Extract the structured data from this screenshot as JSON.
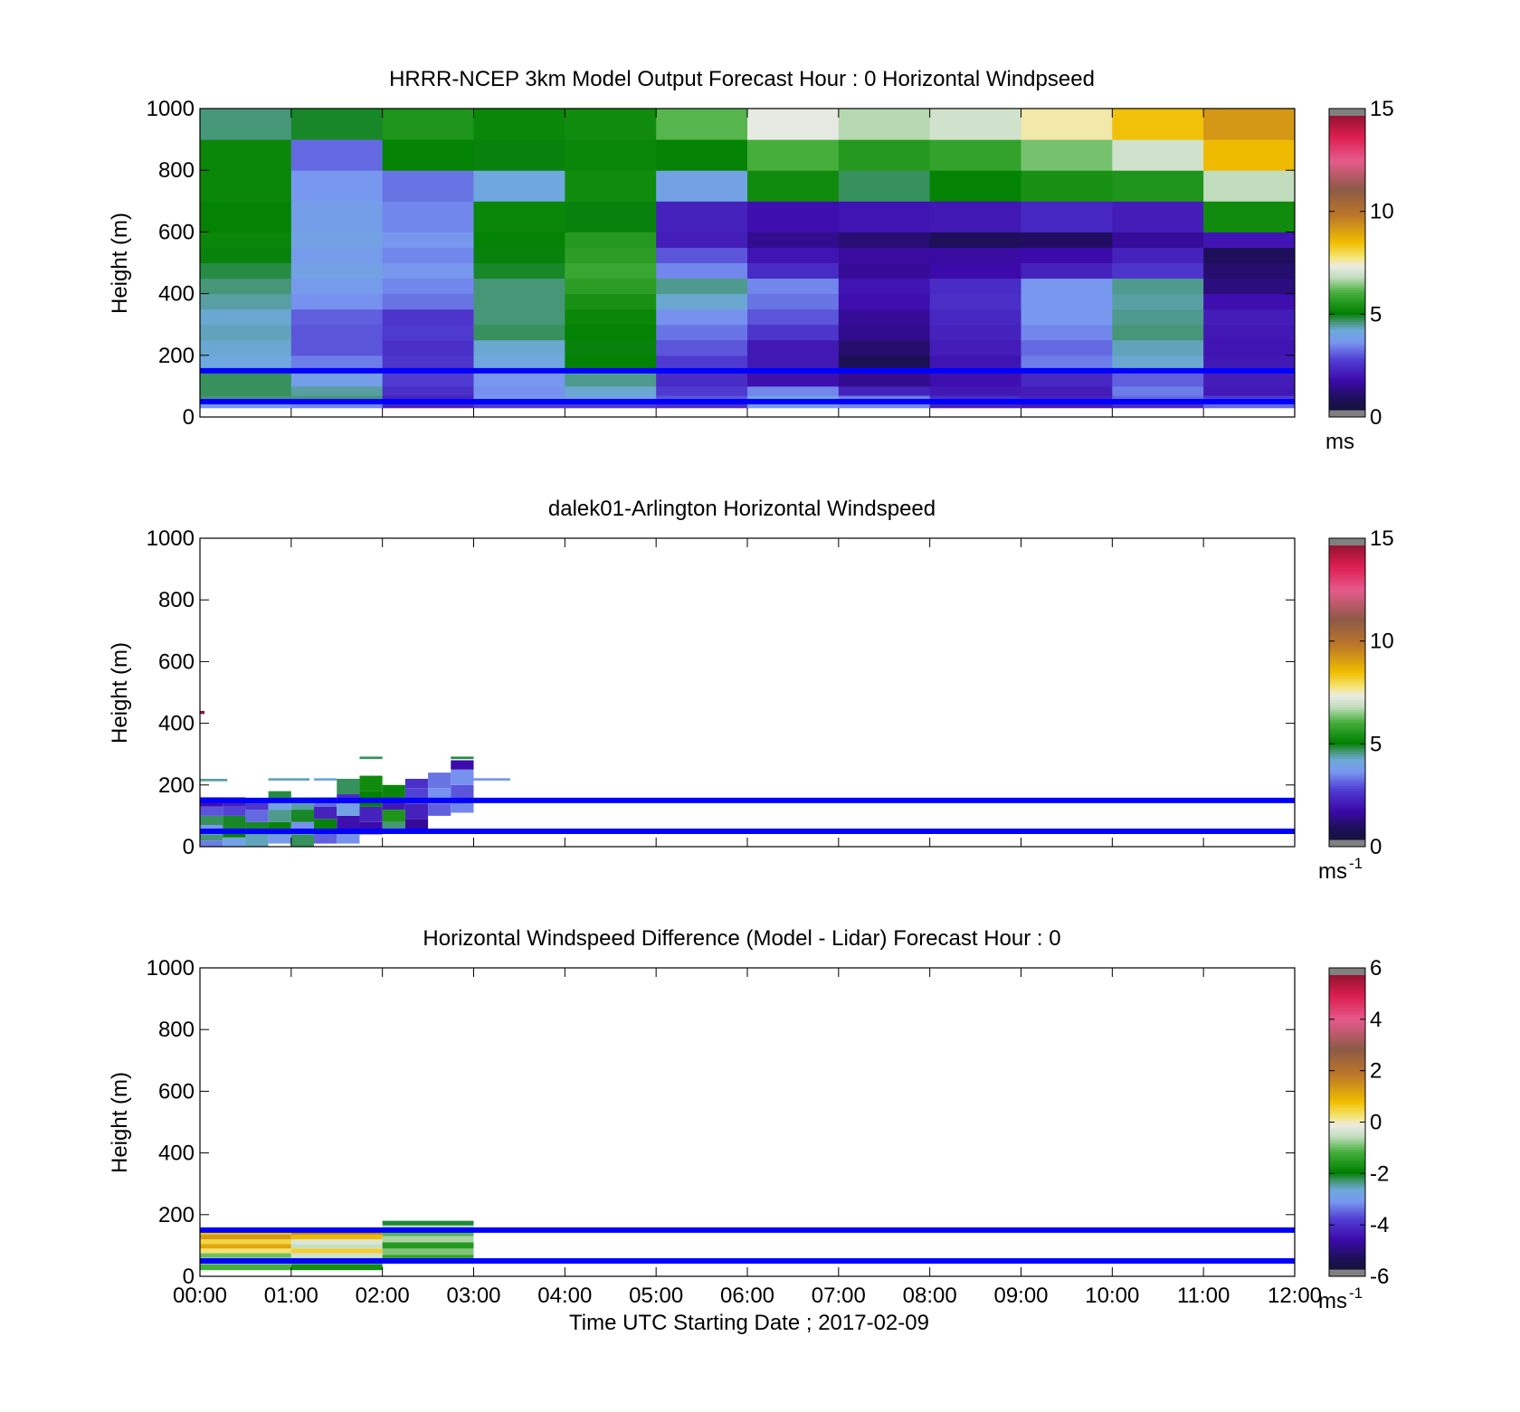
{
  "colors": {
    "reference_line": "#0000ff",
    "axes": "#000000",
    "background": "#ffffff"
  },
  "time_ticks": [
    "00:00",
    "01:00",
    "02:00",
    "03:00",
    "04:00",
    "05:00",
    "06:00",
    "07:00",
    "08:00",
    "09:00",
    "10:00",
    "11:00",
    "12:00"
  ],
  "xlabel": "Time UTC  Starting Date ; 2017-02-09",
  "chart_data": [
    {
      "type": "heatmap",
      "title": "HRRR-NCEP 3km Model Output   Forecast Hour : 0 Horizontal Windpseed",
      "ylabel": "Height (m)",
      "ylim": [
        0,
        1000
      ],
      "yticks": [
        "0",
        "200",
        "400",
        "600",
        "800",
        "1000"
      ],
      "xlim_hours": [
        0,
        12
      ],
      "colorbar": {
        "min": 0,
        "max": 15,
        "ticks": [
          "0",
          "5",
          "10",
          "15"
        ],
        "unit": "ms"
      },
      "reference_lines_m": [
        150,
        50
      ],
      "column_hours": [
        0,
        1,
        2,
        3,
        4,
        5,
        6,
        7,
        8,
        9,
        10,
        11
      ],
      "row_bottoms_m": [
        30,
        50,
        70,
        100,
        150,
        200,
        250,
        300,
        350,
        400,
        450,
        500,
        550,
        600,
        700,
        800,
        900
      ],
      "row_tops_m": [
        50,
        70,
        100,
        150,
        200,
        250,
        300,
        350,
        400,
        450,
        500,
        550,
        600,
        700,
        800,
        900,
        1000
      ],
      "values_ms": [
        [
          3.5,
          3.3,
          2.0,
          2.5,
          2.5,
          2.3,
          3.5,
          3.3,
          2.0,
          1.8,
          2.2,
          3.0
        ],
        [
          4.5,
          4.5,
          2.0,
          3.5,
          3.6,
          2.8,
          3.8,
          3.2,
          2.2,
          2.0,
          3.0,
          2.5
        ],
        [
          4.6,
          4.3,
          2.3,
          3.4,
          4.1,
          2.5,
          3.3,
          2.0,
          1.8,
          1.9,
          3.2,
          1.8
        ],
        [
          4.6,
          3.7,
          2.5,
          3.5,
          4.4,
          2.2,
          1.6,
          1.2,
          1.6,
          2.1,
          2.9,
          1.9
        ],
        [
          4.0,
          3.2,
          2.4,
          4.0,
          5.0,
          2.5,
          1.8,
          0.5,
          1.7,
          3.2,
          4.1,
          1.8
        ],
        [
          4.1,
          2.8,
          2.3,
          4.1,
          4.9,
          2.8,
          1.8,
          0.8,
          1.9,
          3.0,
          4.2,
          1.7
        ],
        [
          4.2,
          2.8,
          2.5,
          4.6,
          5.0,
          3.1,
          2.4,
          1.2,
          2.0,
          3.3,
          4.5,
          1.8
        ],
        [
          4.1,
          2.9,
          2.4,
          4.5,
          5.1,
          3.4,
          2.8,
          1.3,
          2.1,
          3.5,
          4.4,
          1.9
        ],
        [
          4.3,
          3.4,
          3.1,
          4.5,
          5.3,
          4.1,
          3.1,
          1.6,
          2.3,
          3.5,
          4.3,
          1.6
        ],
        [
          4.5,
          3.6,
          3.3,
          4.5,
          5.6,
          4.4,
          3.3,
          1.7,
          2.2,
          3.5,
          4.4,
          1.0
        ],
        [
          4.7,
          3.8,
          3.5,
          4.8,
          5.8,
          3.3,
          2.2,
          1.3,
          1.5,
          2.0,
          2.4,
          0.8
        ],
        [
          4.9,
          3.6,
          3.3,
          4.9,
          5.6,
          2.8,
          1.7,
          1.4,
          1.4,
          1.5,
          2.0,
          0.6
        ],
        [
          5.1,
          3.8,
          3.5,
          5.0,
          5.5,
          1.9,
          1.2,
          0.9,
          0.6,
          0.7,
          1.3,
          1.7
        ],
        [
          5.0,
          3.7,
          3.3,
          5.1,
          4.9,
          2.0,
          1.6,
          1.7,
          1.8,
          2.1,
          1.9,
          5.2
        ],
        [
          5.1,
          3.5,
          3.1,
          4.0,
          5.2,
          3.8,
          5.2,
          4.6,
          5.0,
          5.3,
          5.4,
          6.8
        ],
        [
          5.1,
          3.0,
          5.0,
          4.9,
          5.1,
          5.0,
          6.0,
          5.5,
          5.7,
          6.3,
          7.0,
          8.6
        ],
        [
          4.5,
          4.8,
          5.4,
          5.1,
          5.2,
          6.1,
          7.3,
          6.7,
          7.0,
          7.6,
          8.5,
          9.3
        ]
      ]
    },
    {
      "type": "heatmap",
      "title": "dalek01-Arlington  Horizontal Windspeed",
      "ylabel": "Height (m)",
      "ylim": [
        0,
        1000
      ],
      "yticks": [
        "0",
        "200",
        "400",
        "600",
        "800",
        "1000"
      ],
      "xlim_hours": [
        0,
        12
      ],
      "colorbar": {
        "min": 0,
        "max": 15,
        "ticks": [
          "0",
          "5",
          "10",
          "15"
        ],
        "unit": "ms",
        "unit_exp": "-1"
      },
      "reference_lines_m": [
        150,
        50
      ],
      "observations": [
        {
          "t": 0.0,
          "dt": 0.25,
          "h0": 0,
          "h1": 20,
          "v": 3.2
        },
        {
          "t": 0.0,
          "dt": 0.25,
          "h0": 20,
          "h1": 40,
          "v": 4.5
        },
        {
          "t": 0.0,
          "dt": 0.25,
          "h0": 40,
          "h1": 70,
          "v": 3.5
        },
        {
          "t": 0.0,
          "dt": 0.25,
          "h0": 70,
          "h1": 100,
          "v": 4.6
        },
        {
          "t": 0.0,
          "dt": 0.25,
          "h0": 100,
          "h1": 130,
          "v": 2.8
        },
        {
          "t": 0.0,
          "dt": 0.25,
          "h0": 130,
          "h1": 160,
          "v": 1.6
        },
        {
          "t": 0.0,
          "dt": 0.3,
          "h0": 212,
          "h1": 220,
          "v": 4.3
        },
        {
          "t": 0.25,
          "dt": 0.25,
          "h0": 0,
          "h1": 30,
          "v": 3.8
        },
        {
          "t": 0.25,
          "dt": 0.25,
          "h0": 30,
          "h1": 60,
          "v": 5.0
        },
        {
          "t": 0.25,
          "dt": 0.25,
          "h0": 60,
          "h1": 100,
          "v": 4.8
        },
        {
          "t": 0.25,
          "dt": 0.25,
          "h0": 100,
          "h1": 130,
          "v": 2.6
        },
        {
          "t": 0.25,
          "dt": 0.25,
          "h0": 130,
          "h1": 160,
          "v": 1.9
        },
        {
          "t": 0.5,
          "dt": 0.25,
          "h0": 0,
          "h1": 40,
          "v": 4.2
        },
        {
          "t": 0.5,
          "dt": 0.25,
          "h0": 40,
          "h1": 80,
          "v": 4.8
        },
        {
          "t": 0.5,
          "dt": 0.25,
          "h0": 80,
          "h1": 120,
          "v": 3.0
        },
        {
          "t": 0.5,
          "dt": 0.25,
          "h0": 120,
          "h1": 150,
          "v": 2.4
        },
        {
          "t": 0.75,
          "dt": 0.25,
          "h0": 10,
          "h1": 40,
          "v": 3.6
        },
        {
          "t": 0.75,
          "dt": 0.25,
          "h0": 40,
          "h1": 80,
          "v": 4.9
        },
        {
          "t": 0.75,
          "dt": 0.25,
          "h0": 80,
          "h1": 120,
          "v": 4.4
        },
        {
          "t": 0.75,
          "dt": 0.25,
          "h0": 120,
          "h1": 150,
          "v": 3.8
        },
        {
          "t": 0.75,
          "dt": 0.25,
          "h0": 150,
          "h1": 180,
          "v": 4.7
        },
        {
          "t": 0.75,
          "dt": 0.45,
          "h0": 214,
          "h1": 222,
          "v": 4.2
        },
        {
          "t": 1.0,
          "dt": 0.25,
          "h0": 0,
          "h1": 40,
          "v": 4.6
        },
        {
          "t": 1.0,
          "dt": 0.25,
          "h0": 40,
          "h1": 80,
          "v": 3.4
        },
        {
          "t": 1.0,
          "dt": 0.25,
          "h0": 80,
          "h1": 120,
          "v": 4.8
        },
        {
          "t": 1.0,
          "dt": 0.25,
          "h0": 120,
          "h1": 160,
          "v": 4.3
        },
        {
          "t": 1.25,
          "dt": 0.25,
          "h0": 10,
          "h1": 50,
          "v": 2.9
        },
        {
          "t": 1.25,
          "dt": 0.25,
          "h0": 50,
          "h1": 90,
          "v": 4.9
        },
        {
          "t": 1.25,
          "dt": 0.25,
          "h0": 90,
          "h1": 130,
          "v": 2.0
        },
        {
          "t": 1.25,
          "dt": 0.25,
          "h0": 130,
          "h1": 160,
          "v": 3.0
        },
        {
          "t": 1.25,
          "dt": 0.25,
          "h0": 214,
          "h1": 222,
          "v": 4.0
        },
        {
          "t": 1.5,
          "dt": 0.25,
          "h0": 10,
          "h1": 50,
          "v": 3.4
        },
        {
          "t": 1.5,
          "dt": 0.25,
          "h0": 50,
          "h1": 100,
          "v": 1.6
        },
        {
          "t": 1.5,
          "dt": 0.25,
          "h0": 100,
          "h1": 140,
          "v": 3.8
        },
        {
          "t": 1.5,
          "dt": 0.25,
          "h0": 140,
          "h1": 170,
          "v": 2.2
        },
        {
          "t": 1.5,
          "dt": 0.25,
          "h0": 170,
          "h1": 220,
          "v": 4.6
        },
        {
          "t": 1.75,
          "dt": 0.25,
          "h0": 40,
          "h1": 80,
          "v": 1.5
        },
        {
          "t": 1.75,
          "dt": 0.25,
          "h0": 80,
          "h1": 130,
          "v": 2.0
        },
        {
          "t": 1.75,
          "dt": 0.25,
          "h0": 130,
          "h1": 180,
          "v": 5.0
        },
        {
          "t": 1.75,
          "dt": 0.25,
          "h0": 180,
          "h1": 230,
          "v": 5.2
        },
        {
          "t": 1.75,
          "dt": 0.25,
          "h0": 284,
          "h1": 292,
          "v": 4.6
        },
        {
          "t": 2.0,
          "dt": 0.25,
          "h0": 50,
          "h1": 80,
          "v": 4.5
        },
        {
          "t": 2.0,
          "dt": 0.25,
          "h0": 80,
          "h1": 120,
          "v": 5.4
        },
        {
          "t": 2.0,
          "dt": 0.25,
          "h0": 120,
          "h1": 160,
          "v": 1.8
        },
        {
          "t": 2.0,
          "dt": 0.25,
          "h0": 160,
          "h1": 200,
          "v": 5.1
        },
        {
          "t": 2.25,
          "dt": 0.25,
          "h0": 50,
          "h1": 90,
          "v": 1.3
        },
        {
          "t": 2.25,
          "dt": 0.25,
          "h0": 90,
          "h1": 140,
          "v": 2.0
        },
        {
          "t": 2.25,
          "dt": 0.25,
          "h0": 140,
          "h1": 190,
          "v": 2.6
        },
        {
          "t": 2.25,
          "dt": 0.25,
          "h0": 190,
          "h1": 220,
          "v": 2.3
        },
        {
          "t": 2.5,
          "dt": 0.25,
          "h0": 100,
          "h1": 140,
          "v": 2.9
        },
        {
          "t": 2.5,
          "dt": 0.25,
          "h0": 140,
          "h1": 190,
          "v": 3.4
        },
        {
          "t": 2.5,
          "dt": 0.25,
          "h0": 190,
          "h1": 240,
          "v": 3.1
        },
        {
          "t": 2.75,
          "dt": 0.25,
          "h0": 110,
          "h1": 150,
          "v": 3.3
        },
        {
          "t": 2.75,
          "dt": 0.25,
          "h0": 150,
          "h1": 200,
          "v": 2.8
        },
        {
          "t": 2.75,
          "dt": 0.25,
          "h0": 200,
          "h1": 250,
          "v": 3.4
        },
        {
          "t": 2.75,
          "dt": 0.25,
          "h0": 250,
          "h1": 280,
          "v": 1.5
        },
        {
          "t": 2.75,
          "dt": 0.25,
          "h0": 284,
          "h1": 292,
          "v": 4.7
        },
        {
          "t": 3.0,
          "dt": 0.4,
          "h0": 214,
          "h1": 222,
          "v": 3.5
        },
        {
          "t": 0.0,
          "dt": 0.05,
          "h0": 430,
          "h1": 440,
          "v": 15.5
        }
      ]
    },
    {
      "type": "heatmap",
      "title": "Horizontal Windspeed Difference (Model - Lidar) Forecast Hour : 0",
      "ylabel": "Height (m)",
      "ylim": [
        0,
        1000
      ],
      "yticks": [
        "0",
        "200",
        "400",
        "600",
        "800",
        "1000"
      ],
      "xlim_hours": [
        0,
        12
      ],
      "colorbar": {
        "min": -6,
        "max": 6,
        "ticks": [
          "-6",
          "-4",
          "-2",
          "0",
          "2",
          "4",
          "6"
        ],
        "unit": "ms",
        "unit_exp": "-1"
      },
      "reference_lines_m": [
        150,
        50
      ],
      "observations": [
        {
          "t": 0.0,
          "dt": 1,
          "h0": 20,
          "h1": 40,
          "v": -1.2
        },
        {
          "t": 0.0,
          "dt": 1,
          "h0": 40,
          "h1": 60,
          "v": -0.6
        },
        {
          "t": 0.0,
          "dt": 1,
          "h0": 60,
          "h1": 75,
          "v": -1.0
        },
        {
          "t": 0.0,
          "dt": 1,
          "h0": 75,
          "h1": 90,
          "v": 0.3
        },
        {
          "t": 0.0,
          "dt": 1,
          "h0": 90,
          "h1": 105,
          "v": 1.2
        },
        {
          "t": 0.0,
          "dt": 1,
          "h0": 105,
          "h1": 120,
          "v": 0.5
        },
        {
          "t": 0.0,
          "dt": 1,
          "h0": 120,
          "h1": 135,
          "v": 1.4
        },
        {
          "t": 0.0,
          "dt": 1,
          "h0": 135,
          "h1": 150,
          "v": 0.8
        },
        {
          "t": 1.0,
          "dt": 1,
          "h0": 20,
          "h1": 40,
          "v": -1.8
        },
        {
          "t": 1.0,
          "dt": 1,
          "h0": 40,
          "h1": 60,
          "v": -0.8
        },
        {
          "t": 1.0,
          "dt": 1,
          "h0": 60,
          "h1": 75,
          "v": -0.4
        },
        {
          "t": 1.0,
          "dt": 1,
          "h0": 75,
          "h1": 90,
          "v": 0.6
        },
        {
          "t": 1.0,
          "dt": 1,
          "h0": 90,
          "h1": 105,
          "v": -0.5
        },
        {
          "t": 1.0,
          "dt": 1,
          "h0": 105,
          "h1": 120,
          "v": -0.3
        },
        {
          "t": 1.0,
          "dt": 1,
          "h0": 120,
          "h1": 135,
          "v": 0.9
        },
        {
          "t": 1.0,
          "dt": 1,
          "h0": 135,
          "h1": 150,
          "v": 1.6
        },
        {
          "t": 2.0,
          "dt": 1,
          "h0": 50,
          "h1": 70,
          "v": -1.4
        },
        {
          "t": 2.0,
          "dt": 1,
          "h0": 70,
          "h1": 90,
          "v": -0.9
        },
        {
          "t": 2.0,
          "dt": 1,
          "h0": 90,
          "h1": 110,
          "v": -1.6
        },
        {
          "t": 2.0,
          "dt": 1,
          "h0": 110,
          "h1": 130,
          "v": -0.7
        },
        {
          "t": 2.0,
          "dt": 1,
          "h0": 130,
          "h1": 150,
          "v": -1.1
        },
        {
          "t": 2.0,
          "dt": 1,
          "h0": 150,
          "h1": 165,
          "v": -0.5
        },
        {
          "t": 2.0,
          "dt": 1,
          "h0": 165,
          "h1": 180,
          "v": -2.2
        }
      ]
    }
  ]
}
